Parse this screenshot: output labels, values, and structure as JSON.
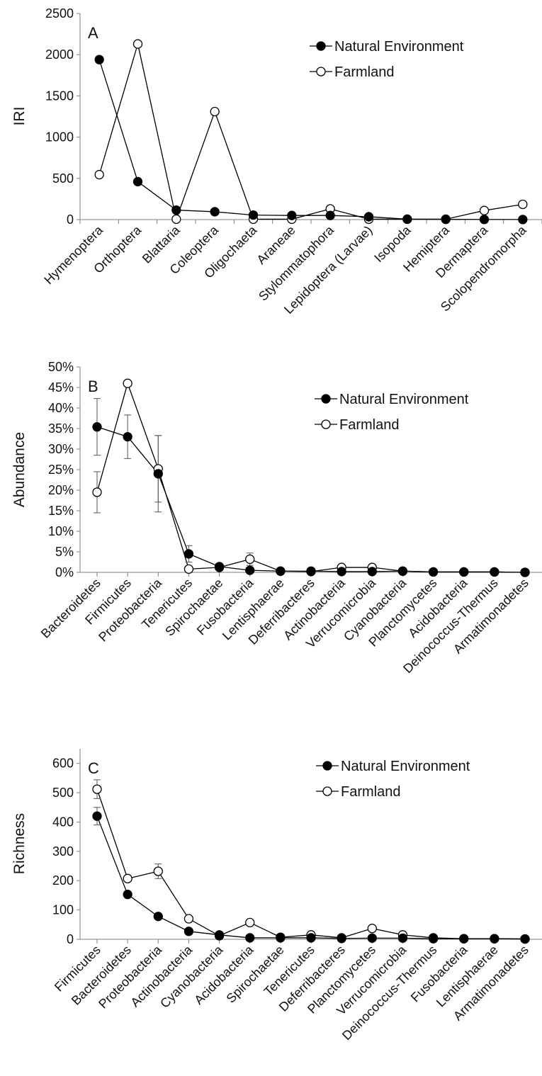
{
  "chart_data": [
    {
      "panel_label": "A",
      "type": "line",
      "ylabel": "IRI",
      "ylim": [
        0,
        2500
      ],
      "yticks": [
        "0",
        "500",
        "1000",
        "1500",
        "2000",
        "2500"
      ],
      "ytick_values": [
        0,
        500,
        1000,
        1500,
        2000,
        2500
      ],
      "legend_position": "top-right",
      "categories": [
        "Hymenoptera",
        "Orthoptera",
        "Blattaria",
        "Coleoptera",
        "Oligochaeta",
        "Araneae",
        "Stylommatophora",
        "Lepidoptera (Larvae)",
        "Isopoda",
        "Hemiptera",
        "Dermaptera",
        "Scolopendromorpha"
      ],
      "series": [
        {
          "name": "Natural Environment",
          "marker": "filled",
          "values": [
            1940,
            460,
            115,
            95,
            55,
            50,
            50,
            35,
            5,
            3,
            2,
            1
          ]
        },
        {
          "name": "Farmland",
          "marker": "open",
          "values": [
            545,
            2130,
            5,
            1310,
            5,
            5,
            130,
            5,
            5,
            5,
            110,
            185
          ]
        }
      ]
    },
    {
      "panel_label": "B",
      "type": "line",
      "ylabel": "Abundance",
      "ylim": [
        0,
        50
      ],
      "yticks": [
        "0%",
        "5%",
        "10%",
        "15%",
        "20%",
        "25%",
        "30%",
        "35%",
        "40%",
        "45%",
        "50%"
      ],
      "ytick_values": [
        0,
        5,
        10,
        15,
        20,
        25,
        30,
        35,
        40,
        45,
        50
      ],
      "legend_position": "top-right",
      "categories": [
        "Bacteroidetes",
        "Firmicutes",
        "Proteobacteria",
        "Tenericutes",
        "Spirochaetae",
        "Fusobacteria",
        "Lentisphaerae",
        "Deferribacteres",
        "Actinobacteria",
        "Verrucomicrobia",
        "Cyanobacteria",
        "Planctomycetes",
        "Acidobacteria",
        "Deinococcus-Thermus",
        "Armatimonadetes"
      ],
      "series": [
        {
          "name": "Natural Environment",
          "marker": "filled",
          "values": [
            35.4,
            33.0,
            24.0,
            4.5,
            1.4,
            0.5,
            0.3,
            0.3,
            0.2,
            0.2,
            0.3,
            0.1,
            0.1,
            0.1,
            0.0
          ],
          "errors": [
            6.9,
            5.3,
            9.3,
            2.0,
            0.5,
            0.3,
            0.2,
            0.1,
            0.1,
            0.1,
            0.1,
            0.05,
            0.05,
            0.05,
            0.0
          ]
        },
        {
          "name": "Farmland",
          "marker": "open",
          "values": [
            19.5,
            46.0,
            25.2,
            0.8,
            1.2,
            3.2,
            0.3,
            0.2,
            1.2,
            1.2,
            0.3,
            0.1,
            0.1,
            0.1,
            0.0
          ],
          "errors": [
            5.0,
            0.3,
            8.1,
            0.5,
            0.4,
            1.5,
            0.1,
            0.1,
            0.4,
            0.3,
            0.1,
            0.05,
            0.05,
            0.05,
            0.0
          ]
        }
      ]
    },
    {
      "panel_label": "C",
      "type": "line",
      "ylabel": "Richness",
      "ylim": [
        0,
        650
      ],
      "yticks": [
        "0",
        "100",
        "200",
        "300",
        "400",
        "500",
        "600"
      ],
      "ytick_values": [
        0,
        100,
        200,
        300,
        400,
        500,
        600
      ],
      "legend_position": "top-right",
      "categories": [
        "Firmicutes",
        "Bacteroidetes",
        "Proteobacteria",
        "Actinobacteria",
        "Cyanobacteria",
        "Acidobacteria",
        "Spirochaetae",
        "Tenericutes",
        "Deferribacteres",
        "Planctomycetes",
        "Verrucomicrobia",
        "Deinococcus-Thermus",
        "Fusobacteria",
        "Lentisphaerae",
        "Armatimonadetes"
      ],
      "series": [
        {
          "name": "Natural Environment",
          "marker": "filled",
          "values": [
            420,
            153,
            78,
            27,
            15,
            5,
            5,
            5,
            3,
            4,
            4,
            2,
            2,
            2,
            1
          ],
          "errors": [
            30,
            8,
            8,
            5,
            4,
            2,
            2,
            2,
            1,
            1,
            1,
            1,
            1,
            1,
            0
          ]
        },
        {
          "name": "Farmland",
          "marker": "open",
          "values": [
            512,
            207,
            232,
            70,
            12,
            57,
            7,
            15,
            5,
            37,
            15,
            5,
            2,
            2,
            1
          ],
          "errors": [
            32,
            8,
            25,
            5,
            3,
            8,
            2,
            3,
            1,
            5,
            3,
            1,
            1,
            1,
            0
          ]
        }
      ]
    }
  ]
}
